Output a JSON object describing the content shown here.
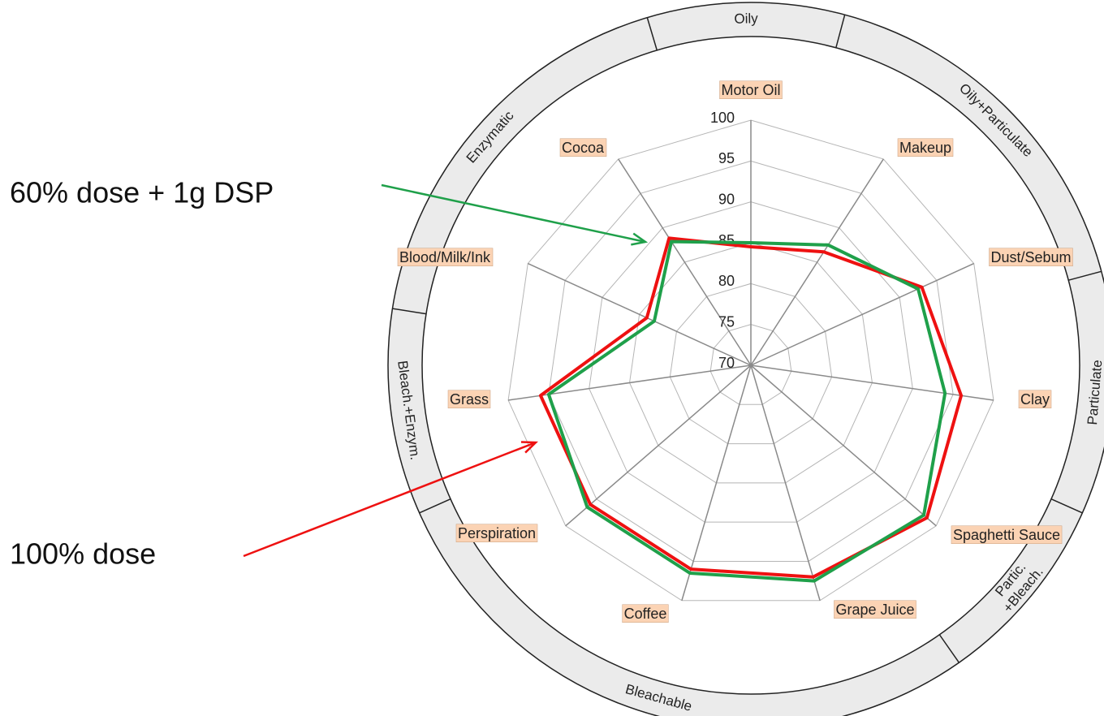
{
  "chart_data": {
    "type": "radar",
    "categories": [
      "Motor Oil",
      "Makeup",
      "Dust/Sebum",
      "Clay",
      "Spaghetti Sauce",
      "Grape Juice",
      "Coffee",
      "Perspiration",
      "Grass",
      "Blood/Milk/Ink",
      "Cocoa"
    ],
    "series": [
      {
        "name": "100% dose",
        "color": "#ee1111",
        "values": [
          84.5,
          86.5,
          93,
          96,
          98.5,
          97,
          96,
          96,
          96,
          84,
          88.5
        ]
      },
      {
        "name": "60% dose + 1g DSP",
        "color": "#1fa04a",
        "values": [
          85,
          87.5,
          92.5,
          94,
          98,
          97.5,
          96.5,
          96.5,
          95,
          83,
          88
        ]
      }
    ],
    "ylim": [
      70,
      100
    ],
    "yticks": [
      70,
      75,
      80,
      85,
      90,
      95,
      100
    ],
    "grid": true,
    "groups": [
      "Oily",
      "Oily+Particulate",
      "Particulate",
      "Partic.\n+Bleach.",
      "Bleachable",
      "Bleach.+Enzym.",
      "Enzymatic"
    ]
  }
}
